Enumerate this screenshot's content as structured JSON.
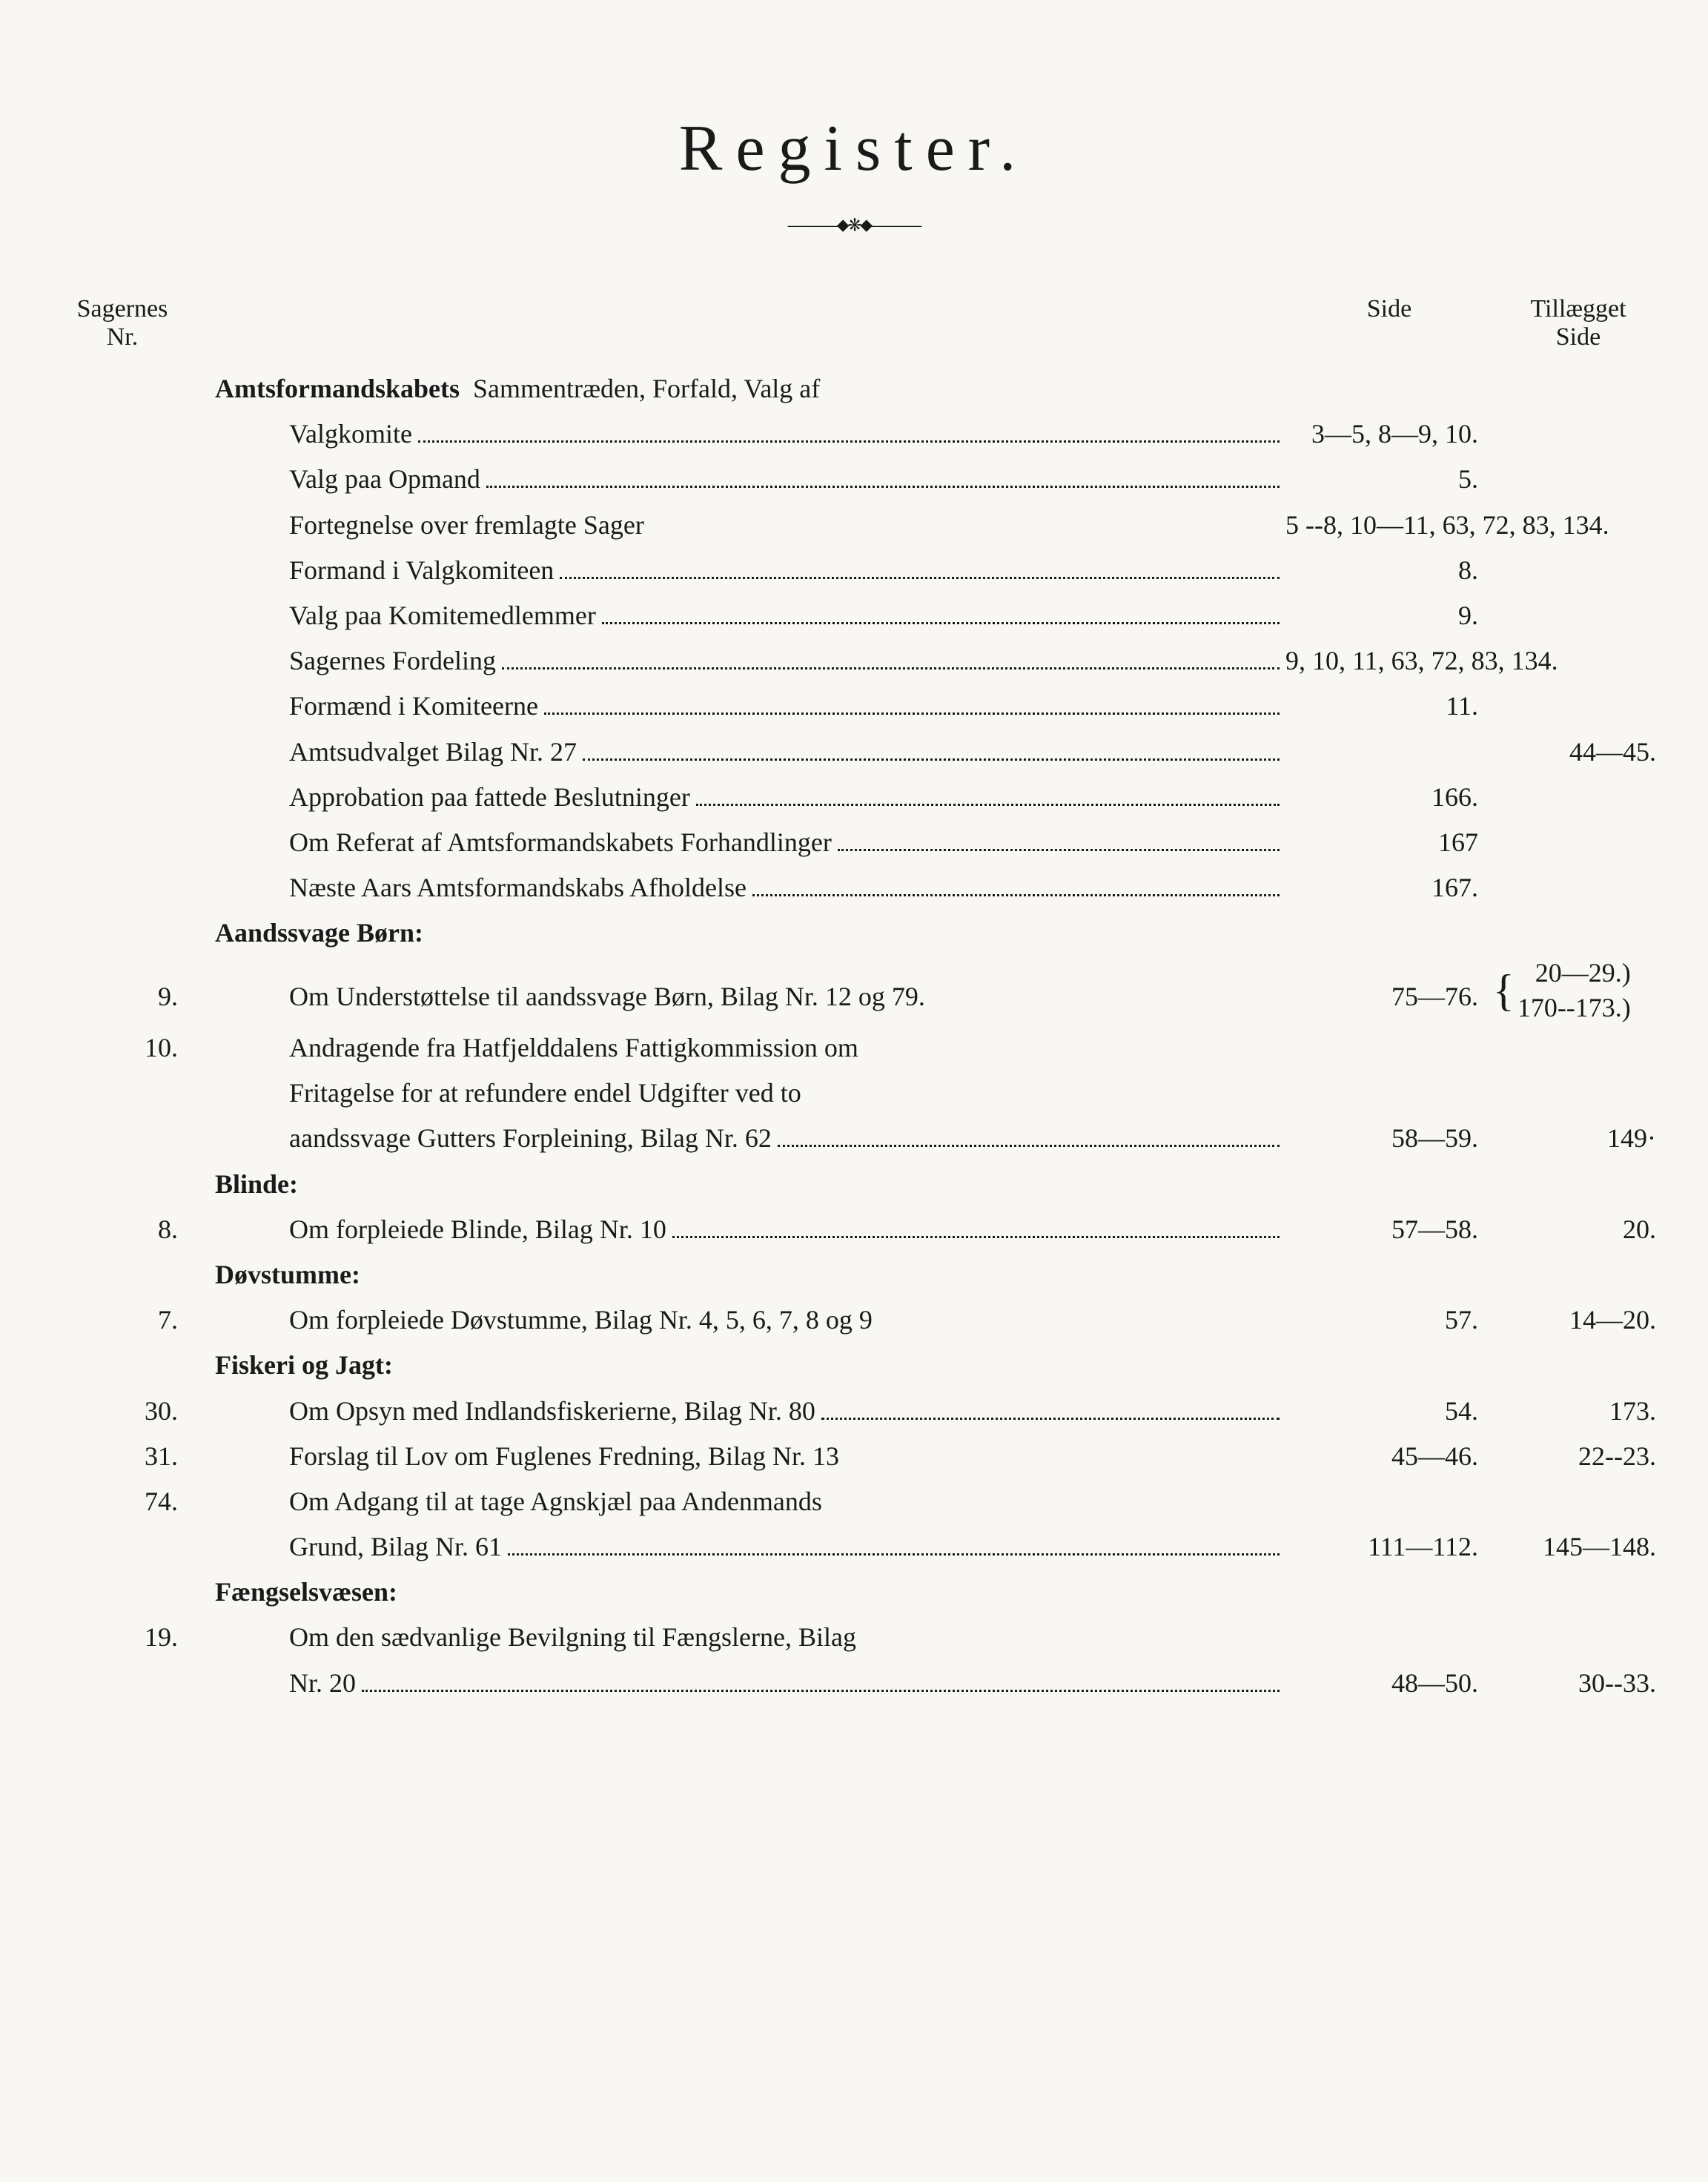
{
  "title": "Register.",
  "headers": {
    "sagernes_line1": "Sagernes",
    "sagernes_line2": "Nr.",
    "side": "Side",
    "tillaeg_line1": "Tillægget",
    "tillaeg_line2": "Side"
  },
  "section1": {
    "head": "Amtsformandskabets",
    "head_rest": "Sammentræden, Forfald, Valg af",
    "r1": {
      "text": "Valgkomite",
      "side": "3—5, 8—9, 10."
    },
    "r2": {
      "text": "Valg paa Opmand",
      "side": "5."
    },
    "r3": {
      "text": "Fortegnelse over fremlagte Sager",
      "side": "5 --8, 10—11, 63, 72, 83, 134."
    },
    "r4": {
      "text": "Formand i Valgkomiteen",
      "side": "8."
    },
    "r5": {
      "text": "Valg paa Komitemedlemmer",
      "side": "9."
    },
    "r6": {
      "text": "Sagernes Fordeling",
      "side": "9, 10, 11, 63, 72, 83, 134."
    },
    "r7": {
      "text": "Formænd i Komiteerne",
      "side": "11."
    },
    "r8": {
      "text": "Amtsudvalget Bilag Nr. 27",
      "side": "",
      "tillaeg": "44—45."
    },
    "r9": {
      "text": "Approbation paa fattede Beslutninger",
      "side": "166."
    },
    "r10": {
      "text": "Om Referat af Amtsformandskabets Forhandlinger",
      "side": "167"
    },
    "r11": {
      "text": "Næste Aars Amtsformandskabs Afholdelse",
      "side": "167."
    }
  },
  "aandssvage": {
    "head": "Aandssvage Børn:",
    "r9": {
      "nr": "9.",
      "text": "Om Understøttelse til aandssvage Børn, Bilag Nr. 12 og 79.",
      "side": "75—76.",
      "tillaeg1": "20—29.)",
      "tillaeg2": "170--173.)"
    },
    "r10": {
      "nr": "10.",
      "line1": "Andragende fra Hatfjelddalens Fattigkommission om",
      "line2": "Fritagelse for at refundere endel Udgifter ved to",
      "line3": "aandssvage Gutters Forpleining, Bilag Nr. 62",
      "side": "58—59.",
      "tillaeg": "149·"
    }
  },
  "blinde": {
    "head": "Blinde:",
    "r8": {
      "nr": "8.",
      "text": "Om forpleiede Blinde, Bilag Nr. 10",
      "side": "57—58.",
      "tillaeg": "20."
    }
  },
  "dovstumme": {
    "head": "Døvstumme:",
    "r7": {
      "nr": "7.",
      "text": "Om forpleiede Døvstumme, Bilag Nr. 4, 5, 6, 7, 8 og 9",
      "side": "57.",
      "tillaeg": "14—20."
    }
  },
  "fiskeri": {
    "head": "Fiskeri og Jagt:",
    "r30": {
      "nr": "30.",
      "text": "Om Opsyn med Indlandsfiskerierne, Bilag Nr. 80",
      "side": "54.",
      "tillaeg": "173."
    },
    "r31": {
      "nr": "31.",
      "text": "Forslag til Lov om Fuglenes Fredning, Bilag Nr. 13",
      "side": "45—46.",
      "tillaeg": "22--23."
    },
    "r74": {
      "nr": "74.",
      "line1": "Om Adgang til at tage Agnskjæl paa Andenmands",
      "line2": "Grund, Bilag Nr. 61",
      "side": "111—112.",
      "tillaeg": "145—148."
    }
  },
  "faengsel": {
    "head": "Fængselsvæsen:",
    "r19": {
      "nr": "19.",
      "line1": "Om den sædvanlige Bevilgning til Fængslerne, Bilag",
      "line2": "Nr. 20",
      "side": "48—50.",
      "tillaeg": "30--33."
    }
  }
}
